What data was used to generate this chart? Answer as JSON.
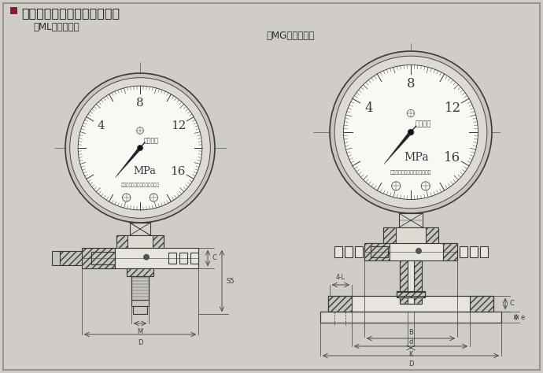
{
  "bg_color": "#d0cdc8",
  "title": "隔离器型式尺寸及安装示意：",
  "title_square_color": "#8b1a2a",
  "subtitle_left": "（ML）螺纹接口",
  "subtitle_right": "（MG）工型法兰",
  "line_color": "#3a3a3a",
  "dim_line_color": "#3a3a3a",
  "gauge_face_color": "#f8f8f4",
  "gauge_ring_color": "#e0ddd6",
  "hatch_fc": "#c8c5be",
  "body_fc": "#dedad3",
  "plain_fc": "#e8e5de"
}
